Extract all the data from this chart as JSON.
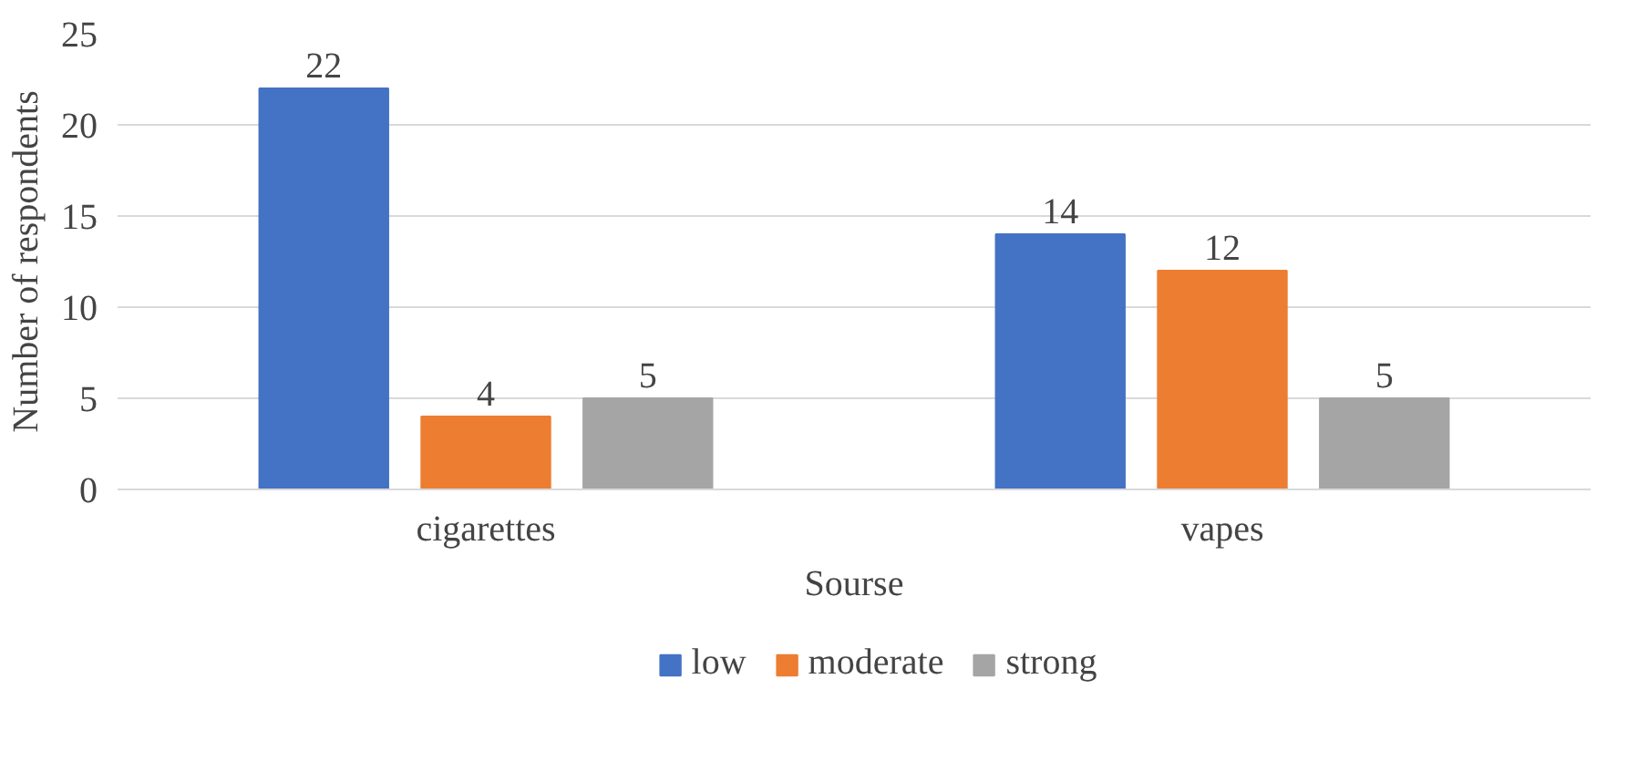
{
  "chart_data": {
    "type": "bar",
    "xlabel": "Sourse",
    "ylabel": "Number of respondents",
    "categories": [
      "cigarettes",
      "vapes"
    ],
    "series": [
      {
        "name": "low",
        "color": "#4472c4",
        "values": [
          22,
          14
        ]
      },
      {
        "name": "moderate",
        "color": "#ed7d31",
        "values": [
          4,
          12
        ]
      },
      {
        "name": "strong",
        "color": "#a5a5a5",
        "values": [
          5,
          5
        ]
      }
    ],
    "ylim": [
      0,
      25
    ],
    "yticks": [
      0,
      5,
      10,
      15,
      20,
      25
    ],
    "grid": "y",
    "legend": "bottom",
    "data_labels": true
  }
}
